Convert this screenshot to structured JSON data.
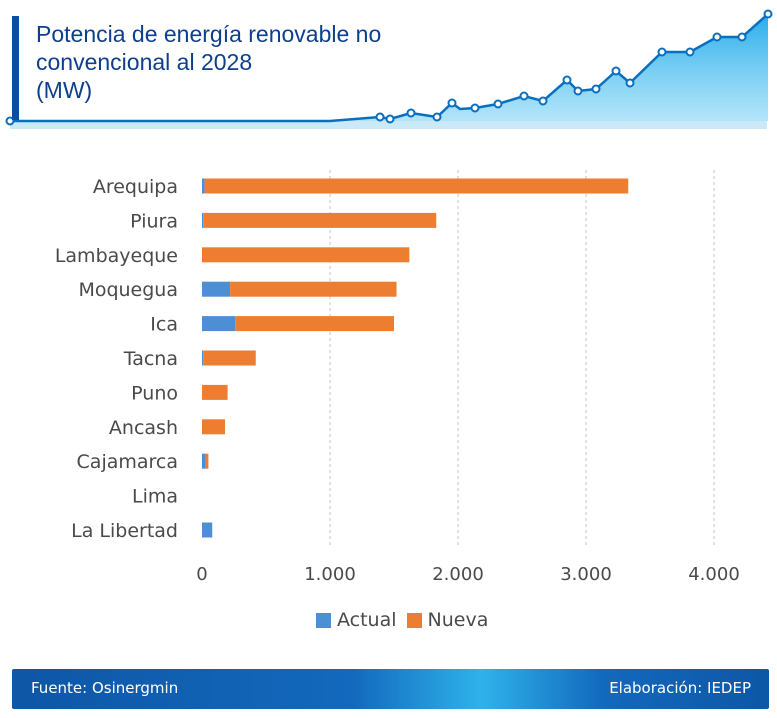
{
  "header": {
    "title_lines": [
      "Potencia de energía renovable no",
      "convencional al 2028",
      "(MW)"
    ]
  },
  "colors": {
    "actual": "#4d8fd4",
    "nueva": "#ed7d31",
    "title": "#0e3f8c",
    "accent": "#0d4f9c"
  },
  "chart_data": {
    "type": "bar",
    "orientation": "horizontal",
    "stacked": true,
    "categories": [
      "Arequipa",
      "Piura",
      "Lambayeque",
      "Moquegua",
      "Ica",
      "Tacna",
      "Puno",
      "Ancash",
      "Cajamarca",
      "Lima",
      "La Libertad"
    ],
    "series": [
      {
        "name": "Actual",
        "values": [
          20,
          10,
          0,
          220,
          260,
          10,
          0,
          0,
          30,
          0,
          80
        ]
      },
      {
        "name": "Nueva",
        "values": [
          3310,
          1820,
          1620,
          1300,
          1240,
          410,
          200,
          180,
          20,
          0,
          0
        ]
      }
    ],
    "xlim": [
      0,
      4400
    ],
    "xticks": [
      0,
      1000,
      2000,
      3000,
      4000
    ],
    "xtick_labels": [
      "0",
      "1.000",
      "2.000",
      "3.000",
      "4.000"
    ],
    "grid": "vertical",
    "legend": "bottom"
  },
  "legend": {
    "actual_label": "Actual",
    "nueva_label": "Nueva"
  },
  "footer": {
    "source": "Fuente: Osinergmin",
    "credit": "Elaboración: IEDEP"
  }
}
